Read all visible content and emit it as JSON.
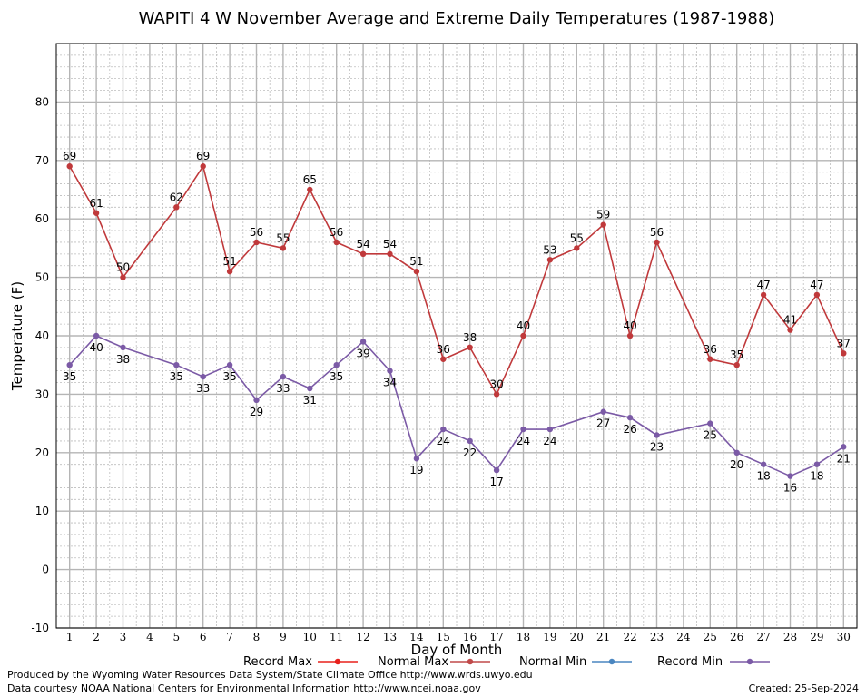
{
  "chart_data": {
    "type": "line",
    "title": "WAPITI 4 W November Average and Extreme Daily Temperatures (1987-1988)",
    "xlabel": "Day of Month",
    "ylabel": "Temperature (F)",
    "xlim": [
      0.5,
      30.5
    ],
    "ylim": [
      -10,
      90
    ],
    "y_ticks": [
      -10,
      0,
      10,
      20,
      30,
      40,
      50,
      60,
      70,
      80
    ],
    "x_ticks": [
      1,
      2,
      3,
      4,
      5,
      6,
      7,
      8,
      9,
      10,
      11,
      12,
      13,
      14,
      15,
      16,
      17,
      18,
      19,
      20,
      21,
      22,
      23,
      24,
      25,
      26,
      27,
      28,
      29,
      30
    ],
    "grid": true,
    "legend_position": "bottom",
    "legend": [
      {
        "name": "Record Max",
        "color": "#e8201c"
      },
      {
        "name": "Normal Max",
        "color": "#c04a4a"
      },
      {
        "name": "Normal Min",
        "color": "#4a86c0"
      },
      {
        "name": "Record Min",
        "color": "#7b5aa6"
      }
    ],
    "series": [
      {
        "name": "Record Max",
        "color": "#c0393b",
        "x": [
          1,
          2,
          3,
          5,
          6,
          7,
          8,
          9,
          10,
          11,
          12,
          13,
          14,
          15,
          16,
          17,
          18,
          19,
          20,
          21,
          22,
          23,
          25,
          26,
          27,
          28,
          29,
          30
        ],
        "values": [
          69,
          61,
          50,
          62,
          69,
          51,
          56,
          55,
          65,
          56,
          54,
          54,
          51,
          36,
          38,
          30,
          40,
          53,
          55,
          59,
          40,
          56,
          36,
          35,
          47,
          41,
          47,
          37
        ]
      },
      {
        "name": "Record Min",
        "color": "#7b5aa6",
        "x": [
          1,
          2,
          3,
          5,
          6,
          7,
          8,
          9,
          10,
          11,
          12,
          13,
          14,
          15,
          16,
          17,
          18,
          19,
          21,
          22,
          23,
          25,
          26,
          27,
          28,
          29,
          30
        ],
        "values": [
          35,
          40,
          38,
          35,
          33,
          35,
          29,
          33,
          31,
          35,
          39,
          34,
          19,
          24,
          22,
          17,
          24,
          24,
          27,
          26,
          23,
          25,
          20,
          18,
          16,
          18,
          21
        ]
      }
    ]
  },
  "footer": {
    "credit_line1": "Produced by the Wyoming Water Resources Data System/State Climate Office http://www.wrds.uwyo.edu",
    "credit_line2": "Data courtesy NOAA National Centers for Environmental Information http://www.ncei.noaa.gov",
    "created": "Created:  25-Sep-2024"
  }
}
